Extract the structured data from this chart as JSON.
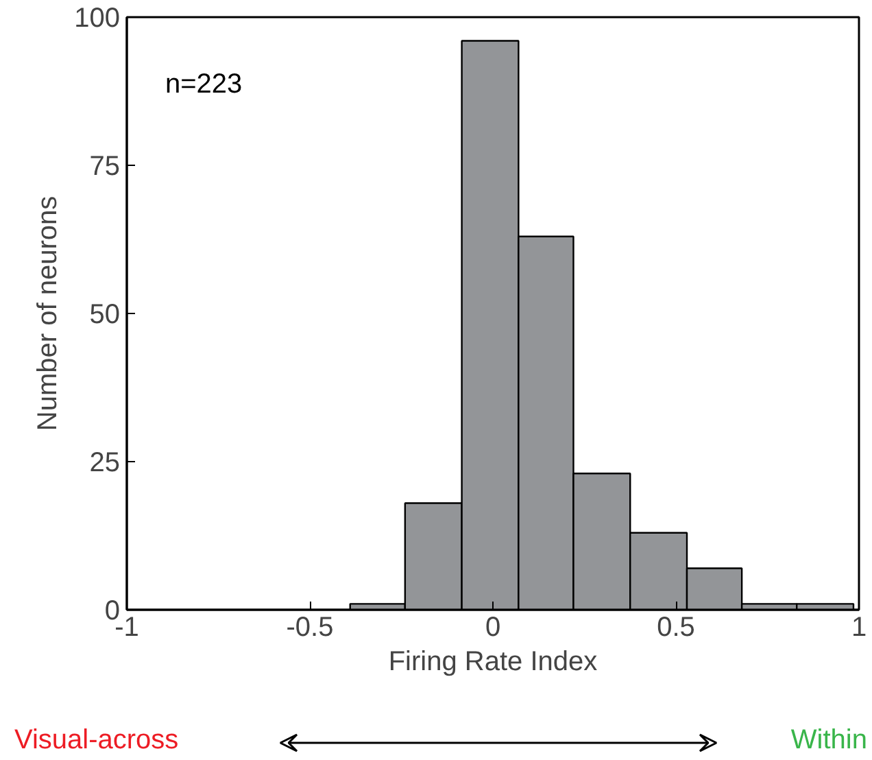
{
  "chart_data": {
    "type": "histogram",
    "xlabel": "Firing Rate Index",
    "ylabel": "Number of neurons",
    "bins": [
      -0.39,
      -0.24,
      -0.085,
      0.07,
      0.22,
      0.375,
      0.53,
      0.68,
      0.83,
      0.985
    ],
    "values": [
      1,
      18,
      96,
      63,
      23,
      13,
      7,
      1,
      1
    ],
    "color": "#939598",
    "xlim": [
      -1,
      1
    ],
    "xticks": [
      -1,
      -0.5,
      0,
      0.5,
      1
    ],
    "ylim": [
      0,
      100
    ],
    "yticks": [
      0,
      25,
      50,
      75,
      100
    ],
    "grid": false,
    "annotations": [
      "n=223",
      "Visual-across",
      "Within"
    ]
  }
}
